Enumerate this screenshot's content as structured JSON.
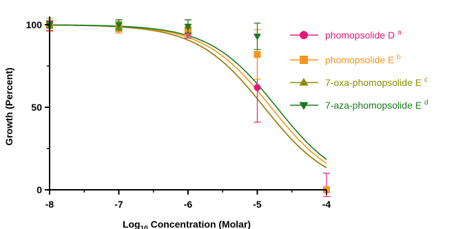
{
  "chart_data": {
    "type": "scatter",
    "xlabel_parts": {
      "pre": "Log",
      "sub": "10",
      "post": " Concentration (Molar)"
    },
    "ylabel": "Growth (Percent)",
    "xlim": [
      -8,
      -4
    ],
    "ylim": [
      0,
      105
    ],
    "xticks": [
      {
        "value": -8,
        "label": "-8"
      },
      {
        "value": -7,
        "label": "-7"
      },
      {
        "value": -6,
        "label": "-6"
      },
      {
        "value": -5,
        "label": "-5"
      },
      {
        "value": -4,
        "label": "-4"
      }
    ],
    "yticks": [
      {
        "value": 0,
        "label": "0"
      },
      {
        "value": 50,
        "label": "50"
      },
      {
        "value": 100,
        "label": "100"
      }
    ],
    "legend_position": "right",
    "series": [
      {
        "name": "phomopsolide D",
        "sup": "a",
        "color": "#e6197a",
        "marker": "circle",
        "logEC50": -4.9,
        "hill": 0.9,
        "points": [
          {
            "x": -8,
            "y": 99.5,
            "err": 3
          },
          {
            "x": -7,
            "y": 99,
            "err": 4
          },
          {
            "x": -6,
            "y": 95,
            "err": 3
          },
          {
            "x": -5,
            "y": 62,
            "err": 21
          },
          {
            "x": -4,
            "y": 0,
            "err": 10
          }
        ]
      },
      {
        "name": "phomopsolide E",
        "sup": "b",
        "color": "#f7941d",
        "marker": "square",
        "logEC50": -4.8,
        "hill": 0.9,
        "points": [
          {
            "x": -8,
            "y": 100,
            "err": 4
          },
          {
            "x": -7,
            "y": 98,
            "err": 3
          },
          {
            "x": -6,
            "y": 97,
            "err": 3
          },
          {
            "x": -5,
            "y": 82,
            "err": 15
          },
          {
            "x": -4,
            "y": 0,
            "err": 0
          }
        ]
      },
      {
        "name": "7-oxa-phomopsolide E",
        "sup": "c",
        "color": "#8c8c00",
        "marker": "triangle-up",
        "logEC50": -4.9,
        "hill": 0.9,
        "points": [
          {
            "x": -8,
            "y": 100,
            "err": 2
          },
          {
            "x": -7,
            "y": 99,
            "err": 3
          },
          {
            "x": -6,
            "y": 99,
            "err": 4
          }
        ]
      },
      {
        "name": "7-aza-phomopsolide E",
        "sup": "d",
        "color": "#1b7a1b",
        "marker": "triangle-down",
        "logEC50": -4.72,
        "hill": 0.9,
        "points": [
          {
            "x": -8,
            "y": 100,
            "err": 2
          },
          {
            "x": -7,
            "y": 100,
            "err": 3
          },
          {
            "x": -6,
            "y": 99,
            "err": 4
          },
          {
            "x": -5,
            "y": 93,
            "err": 8
          }
        ]
      }
    ]
  }
}
